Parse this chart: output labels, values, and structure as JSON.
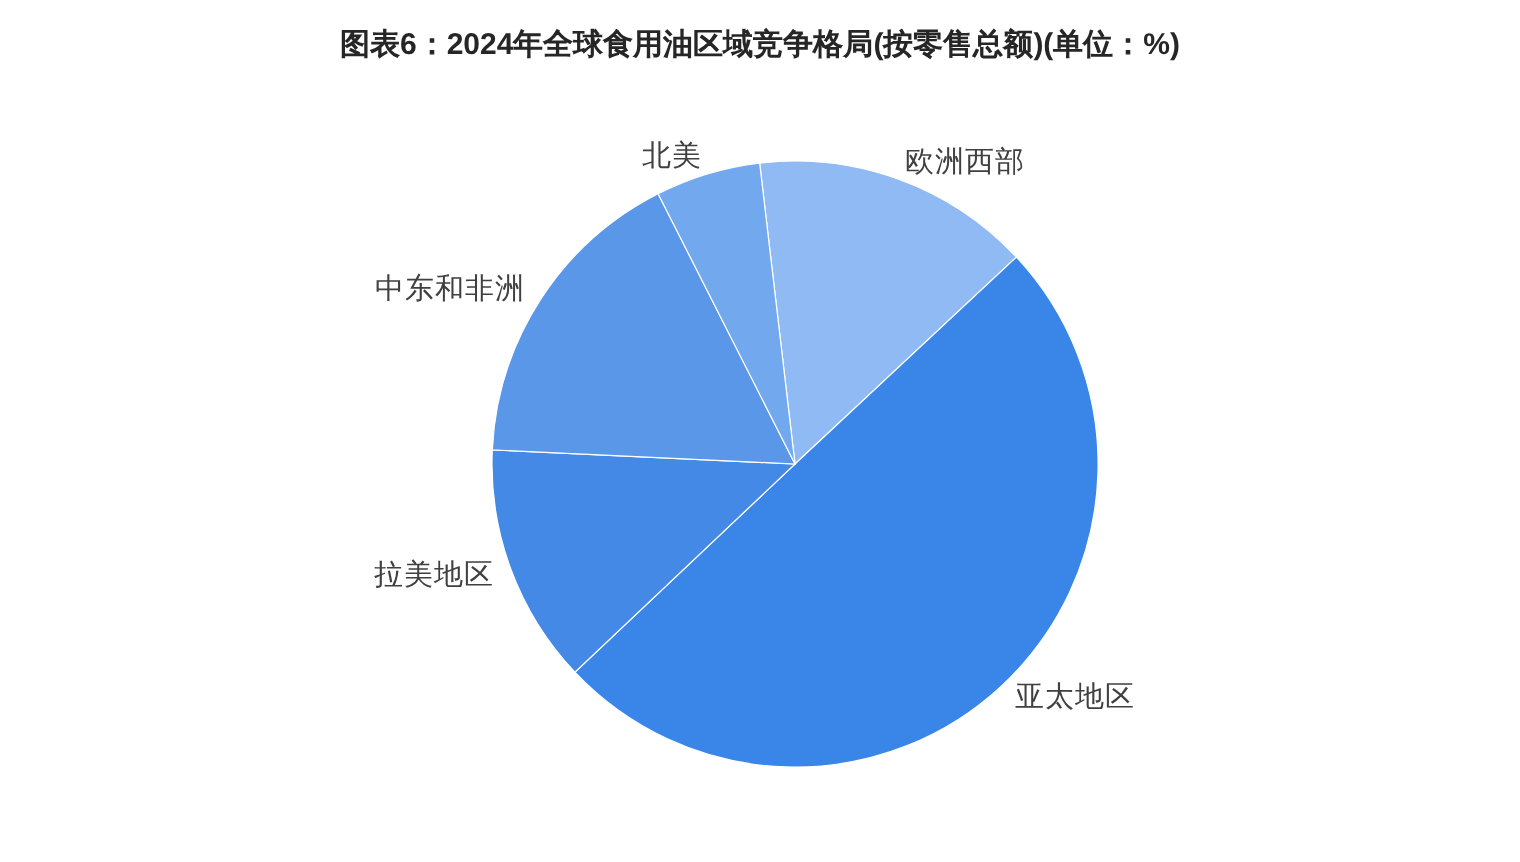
{
  "chart_data": {
    "type": "pie",
    "title": "图表6：2024年全球食用油区域竞争格局(按零售总额)(单位：%)",
    "categories": [
      "欧洲西部",
      "亚太地区",
      "拉美地区",
      "中东和非洲",
      "北美"
    ],
    "values": [
      14.9,
      49.9,
      12.8,
      16.8,
      5.6
    ],
    "colors": [
      "#8fbaf3",
      "#3986e8",
      "#4489e5",
      "#5b97e8",
      "#72a8ee"
    ]
  }
}
